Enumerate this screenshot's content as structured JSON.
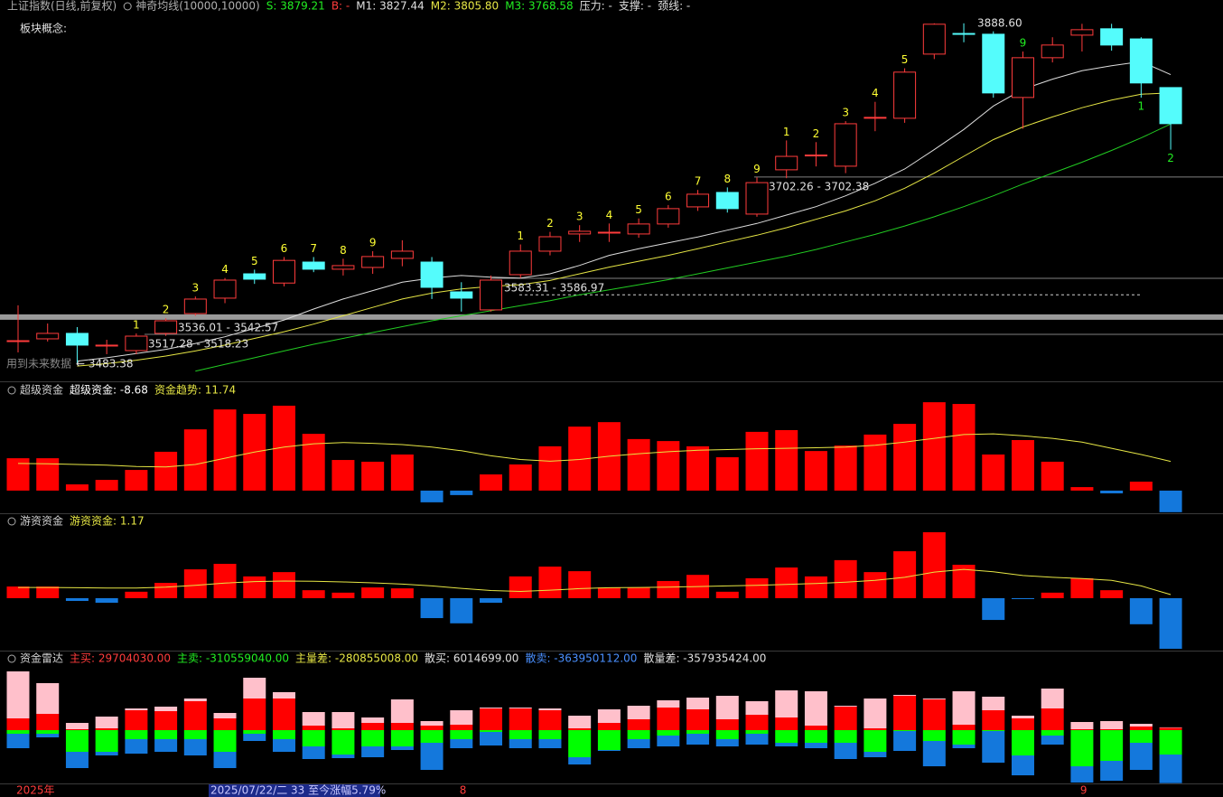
{
  "chart_data": [
    {
      "type": "candlestick",
      "title": "上证指数(日线,前复权)",
      "indicator": "神奇均线(10000,10000)",
      "subtitle": "板块概念:",
      "readouts": [
        {
          "text": "S: 3879.21",
          "color": "#22ee22"
        },
        {
          "text": "B: -",
          "color": "#ff3c3c"
        },
        {
          "text": "M1: 3827.44",
          "color": "#e0e0e0"
        },
        {
          "text": "M2: 3805.80",
          "color": "#e6e645"
        },
        {
          "text": "M3: 3768.58",
          "color": "#22ee22"
        },
        {
          "text": "压力: -",
          "color": "#e0e0e0"
        },
        {
          "text": "支撑: -",
          "color": "#e0e0e0"
        },
        {
          "text": "颈线: -",
          "color": "#e0e0e0"
        }
      ],
      "ylim": [
        3464,
        3897
      ],
      "up_color": "#ff3c3c",
      "down_color": "#54fcfc",
      "open": [
        3510.3,
        3512.5,
        3519,
        3503.9,
        3498.5,
        3519,
        3542.6,
        3561,
        3590,
        3579,
        3604,
        3595.5,
        3597.6,
        3608.4,
        3604,
        3568.5,
        3547,
        3589,
        3617,
        3637.5,
        3638.6,
        3637.5,
        3649.4,
        3669.8,
        3687,
        3661.2,
        3714,
        3730.6,
        3718.3,
        3775.5,
        3775.4,
        3851.9,
        3876.5,
        3875.6,
        3800.2,
        3847.6,
        3874.5,
        3882.1,
        3870,
        3812
      ],
      "high": [
        3552.4,
        3530.8,
        3526.5,
        3511.4,
        3519,
        3537,
        3563,
        3585,
        3595,
        3610,
        3610,
        3608,
        3617,
        3630,
        3610,
        3580,
        3588,
        3625,
        3640,
        3648,
        3650,
        3656,
        3672,
        3690,
        3693,
        3705,
        3749,
        3747,
        3772,
        3795,
        3835,
        3888.6,
        3888.6,
        3879,
        3855,
        3872,
        3888,
        3888,
        3872,
        3812
      ],
      "low": [
        3496.3,
        3509.3,
        3483.38,
        3494.2,
        3494.2,
        3516,
        3540,
        3555,
        3578,
        3575,
        3592,
        3588,
        3590,
        3599,
        3560,
        3545,
        3545,
        3585,
        3612,
        3628,
        3628,
        3633,
        3645,
        3665,
        3663,
        3658,
        3704,
        3718,
        3710,
        3760,
        3770,
        3846,
        3866,
        3800,
        3763,
        3842,
        3855,
        3856,
        3800,
        3738
      ],
      "close": [
        3510.3,
        3519,
        3505,
        3505,
        3515.7,
        3534,
        3559.9,
        3582.5,
        3583.6,
        3606,
        3595.5,
        3599.8,
        3610.6,
        3617,
        3573.9,
        3561,
        3582.5,
        3617,
        3634.2,
        3640.7,
        3639.6,
        3649.4,
        3667.7,
        3684.9,
        3667.7,
        3698.7,
        3730,
        3731.6,
        3768.9,
        3776.5,
        3830.4,
        3887.5,
        3875.5,
        3805.6,
        3847.6,
        3862.7,
        3881,
        3862.7,
        3817.5,
        3769
      ],
      "series": [
        {
          "color": "#dddddd",
          "values": [
            null,
            null,
            3486,
            3490,
            3495,
            3500,
            3507,
            3515,
            3525,
            3535,
            3548,
            3560,
            3570,
            3580,
            3585,
            3588,
            3586,
            3585,
            3590,
            3600,
            3612,
            3620,
            3627,
            3634,
            3642,
            3650,
            3660,
            3670,
            3683,
            3698,
            3715,
            3738,
            3762,
            3790,
            3810,
            3822,
            3832,
            3838,
            3843,
            3827.44
          ]
        },
        {
          "color": "#e6e645",
          "values": [
            null,
            null,
            3480,
            3483,
            3487,
            3492,
            3498,
            3505,
            3513,
            3521,
            3530,
            3540,
            3550,
            3560,
            3567,
            3572,
            3575,
            3577,
            3582,
            3590,
            3598,
            3605,
            3612,
            3620,
            3628,
            3636,
            3645,
            3655,
            3665,
            3677,
            3692,
            3710,
            3730,
            3750,
            3765,
            3777,
            3788,
            3797,
            3804,
            3805.8
          ]
        },
        {
          "color": "#22cc22",
          "values": [
            null,
            null,
            null,
            null,
            null,
            null,
            3474,
            3482,
            3490,
            3498,
            3506,
            3513,
            3520,
            3527,
            3534,
            3540,
            3546,
            3552,
            3558,
            3565,
            3571,
            3577,
            3583,
            3590,
            3597,
            3604,
            3611,
            3619,
            3628,
            3637,
            3647,
            3658,
            3670,
            3683,
            3697,
            3710,
            3723,
            3737,
            3752,
            3768.58
          ]
        }
      ],
      "levels": [
        {
          "value": 3705.4,
          "style": "thin"
        },
        {
          "value": 3584.7,
          "style": "thin"
        },
        {
          "value": 3538.4,
          "style": "thick"
        },
        {
          "value": 3517.9,
          "style": "thin"
        },
        {
          "value": 3565,
          "style": "dashed"
        }
      ],
      "annotations": [
        "3888.60",
        "3702.26 - 3702.38",
        "3583.31 - 3586.97",
        "3536.01 - 3542.57",
        "3517.28 - 3518.23",
        "用到未来数据",
        "← 3483.38"
      ],
      "counts": [
        null,
        null,
        null,
        null,
        {
          "text": "1",
          "color": "#ffff33",
          "side": "above"
        },
        {
          "text": "2",
          "color": "#ffff33",
          "side": "above"
        },
        {
          "text": "3",
          "color": "#ffff33",
          "side": "above"
        },
        {
          "text": "4",
          "color": "#ffff33",
          "side": "above"
        },
        {
          "text": "5",
          "color": "#ffff33",
          "side": "above"
        },
        {
          "text": "6",
          "color": "#ffff33",
          "side": "above"
        },
        {
          "text": "7",
          "color": "#ffff33",
          "side": "above"
        },
        {
          "text": "8",
          "color": "#ffff33",
          "side": "above"
        },
        {
          "text": "9",
          "color": "#ffff33",
          "side": "above"
        },
        null,
        null,
        null,
        null,
        {
          "text": "1",
          "color": "#ffff33",
          "side": "above"
        },
        {
          "text": "2",
          "color": "#ffff33",
          "side": "above"
        },
        {
          "text": "3",
          "color": "#ffff33",
          "side": "above"
        },
        {
          "text": "4",
          "color": "#ffff33",
          "side": "above"
        },
        {
          "text": "5",
          "color": "#ffff33",
          "side": "above"
        },
        {
          "text": "6",
          "color": "#ffff33",
          "side": "above"
        },
        {
          "text": "7",
          "color": "#ffff33",
          "side": "above"
        },
        {
          "text": "8",
          "color": "#ffff33",
          "side": "above"
        },
        {
          "text": "9",
          "color": "#ffff33",
          "side": "above"
        },
        {
          "text": "1",
          "color": "#ffff33",
          "side": "above"
        },
        {
          "text": "2",
          "color": "#ffff33",
          "side": "above"
        },
        {
          "text": "3",
          "color": "#ffff33",
          "side": "above"
        },
        {
          "text": "4",
          "color": "#ffff33",
          "side": "above"
        },
        {
          "text": "5",
          "color": "#ffff33",
          "side": "above"
        },
        null,
        null,
        null,
        {
          "text": "9",
          "color": "#22ee22",
          "side": "above"
        },
        null,
        null,
        null,
        {
          "text": "1",
          "color": "#22ee22",
          "side": "below"
        },
        {
          "text": "2",
          "color": "#22ee22",
          "side": "below"
        }
      ]
    },
    {
      "type": "bar",
      "title": "超级资金",
      "readouts": [
        {
          "text": "超级资金: -8.68",
          "color": "#ffffff"
        },
        {
          "text": "资金趋势: 11.74",
          "color": "#e6e645"
        }
      ],
      "ylim": [
        -9.1,
        42.8
      ],
      "up_color": "#ff0000",
      "down_color": "#1478dc",
      "trend_color": "#e6e645",
      "values": [
        13.0,
        13.0,
        2.5,
        4.3,
        8.3,
        15.6,
        24.6,
        32.6,
        30.8,
        34.1,
        22.8,
        12.3,
        11.6,
        14.5,
        -4.7,
        -1.8,
        6.5,
        10.5,
        17.8,
        25.7,
        27.5,
        20.7,
        19.9,
        17.8,
        13.4,
        23.6,
        24.3,
        15.9,
        18.1,
        22.5,
        26.8,
        35.5,
        34.8,
        14.5,
        20.3,
        11.6,
        1.4,
        -1.1,
        3.6,
        -8.68
      ],
      "trend": [
        10.9,
        10.8,
        10.5,
        10.2,
        9.7,
        9.5,
        10.5,
        13,
        15.5,
        17.5,
        18.8,
        19.3,
        19,
        18.5,
        17.5,
        16,
        14,
        12.5,
        11.8,
        12.5,
        13.8,
        14.8,
        15.6,
        16.2,
        16.5,
        16.8,
        17,
        17.2,
        17.5,
        18.2,
        19.5,
        21,
        22.5,
        22.8,
        22,
        21,
        19.5,
        17,
        14.5,
        11.74
      ]
    },
    {
      "type": "bar",
      "title": "游资资金",
      "readouts": [
        {
          "text": "游资资金: 1.17",
          "color": "#e6e645"
        }
      ],
      "ylim": [
        -17.1,
        27.1
      ],
      "up_color": "#ff0000",
      "down_color": "#1478dc",
      "trend_color": "#e6e645",
      "values": [
        3.8,
        3.8,
        -0.9,
        -1.5,
        2.1,
        5.0,
        9.4,
        11.2,
        7.1,
        8.5,
        2.6,
        1.8,
        3.5,
        3.2,
        -6.5,
        -8.2,
        -1.5,
        7.1,
        10.3,
        8.8,
        3.5,
        3.5,
        5.6,
        7.6,
        2.1,
        6.5,
        10,
        7.1,
        12.4,
        8.5,
        15.3,
        21.5,
        10.9,
        -7.1,
        -0.3,
        1.8,
        6.5,
        2.6,
        -8.5,
        -16.5
      ],
      "trend": [
        3.5,
        3.5,
        3.4,
        3.3,
        3.3,
        3.6,
        4.2,
        4.9,
        5.4,
        5.6,
        5.5,
        5.3,
        5,
        4.6,
        4,
        3.2,
        2.5,
        2.2,
        2.6,
        3.1,
        3.4,
        3.5,
        3.6,
        3.8,
        4,
        4.2,
        4.5,
        4.8,
        5.2,
        5.8,
        6.8,
        8.5,
        9.4,
        8.6,
        7.4,
        6.8,
        6.4,
        5.8,
        4,
        1.17
      ]
    },
    {
      "type": "stacked_bar",
      "title": "资金雷达",
      "readouts": [
        {
          "text": "主买: 29704030.00",
          "color": "#ff3c3c"
        },
        {
          "text": "主卖: -310559040.00",
          "color": "#22ee22"
        },
        {
          "text": "主量差: -280855008.00",
          "color": "#e6e645"
        },
        {
          "text": "散买: 6014699.00",
          "color": "#e0e0e0"
        },
        {
          "text": "散卖: -363950112.00",
          "color": "#4a90ff"
        },
        {
          "text": "散量差: -357935424.00",
          "color": "#e0e0e0"
        }
      ],
      "ylim": [
        -690000000.0,
        805000000.0
      ],
      "series": [
        {
          "color": "#ff0000",
          "values": [
            149500000.0,
            207000000.0,
            11500000.0,
            23000000.0,
            253000000.0,
            241500000.0,
            368000000.0,
            149500000.0,
            402500000.0,
            402500000.0,
            57500000.0,
            23000000.0,
            92000000.0,
            92000000.0,
            57500000.0,
            69000000.0,
            276000000.0,
            276000000.0,
            253000000.0,
            23000000.0,
            92000000.0,
            138000000.0,
            287500000.0,
            264500000.0,
            138000000.0,
            195500000.0,
            161000000.0,
            57500000.0,
            299000000.0,
            23000000.0,
            437000000.0,
            391000000.0,
            69000000.0,
            253000000.0,
            149500000.0,
            276000000.0,
            11500000.0,
            11500000.0,
            46000000.0,
            29704030
          ]
        },
        {
          "color": "#ffc0cb",
          "values": [
            598000000.0,
            391000000.0,
            80500000.0,
            149500000.0,
            23000000.0,
            57500000.0,
            34500000.0,
            69000000.0,
            264500000.0,
            80500000.0,
            172500000.0,
            207000000.0,
            69000000.0,
            299000000.0,
            57500000.0,
            184000000.0,
            11500000.0,
            11500000.0,
            23000000.0,
            161000000.0,
            172500000.0,
            172500000.0,
            92000000.0,
            149500000.0,
            299000000.0,
            172500000.0,
            345000000.0,
            437000000.0,
            11500000.0,
            379500000.0,
            11500000.0,
            11500000.0,
            425500000.0,
            172500000.0,
            34500000.0,
            253000000.0,
            92000000.0,
            103500000.0,
            34500000.0,
            6014699
          ]
        },
        {
          "color": "#00ff00",
          "values": [
            -46000000.0,
            -46000000.0,
            -276000000.0,
            -276000000.0,
            -115000000.0,
            -115000000.0,
            -115000000.0,
            -276000000.0,
            -46000000.0,
            -115000000.0,
            -207000000.0,
            -310500000.0,
            -207000000.0,
            -207000000.0,
            -161000000.0,
            -115000000.0,
            -23000000.0,
            -115000000.0,
            -115000000.0,
            -345000000.0,
            -253000000.0,
            -115000000.0,
            -69000000.0,
            -46000000.0,
            -115000000.0,
            -46000000.0,
            -161000000.0,
            -161000000.0,
            -161000000.0,
            -276000000.0,
            -11500000.0,
            -138000000.0,
            -184000000.0,
            -11500000.0,
            -322000000.0,
            -69000000.0,
            -460000000.0,
            -391000000.0,
            -161000000.0,
            -310559040
          ]
        },
        {
          "color": "#1478dc",
          "values": [
            -184000000.0,
            -46000000.0,
            -207000000.0,
            -46000000.0,
            -184000000.0,
            -161000000.0,
            -207000000.0,
            -207000000.0,
            -92000000.0,
            -161000000.0,
            -161000000.0,
            -46000000.0,
            -138000000.0,
            -46000000.0,
            -345000000.0,
            -115000000.0,
            -172500000.0,
            -115000000.0,
            -115000000.0,
            -92000000.0,
            -11500000.0,
            -115000000.0,
            -138000000.0,
            -138000000.0,
            -92000000.0,
            -138000000.0,
            -46000000.0,
            -69000000.0,
            -207000000.0,
            -69000000.0,
            -253000000.0,
            -322000000.0,
            -46000000.0,
            -402500000.0,
            -253000000.0,
            -115000000.0,
            -207000000.0,
            -253000000.0,
            -345000000.0,
            -363950112
          ]
        }
      ],
      "categories": [
        "2025年",
        null,
        null,
        null,
        null,
        null,
        null,
        null,
        null,
        null,
        null,
        null,
        null,
        null,
        null,
        "8",
        null,
        null,
        null,
        null,
        null,
        null,
        null,
        null,
        null,
        null,
        null,
        null,
        null,
        null,
        null,
        null,
        null,
        null,
        null,
        null,
        "9",
        null,
        null,
        null
      ],
      "category_color": "#ff3c3c",
      "cursor_label": "2025/07/22/二 33 至今涨幅5.79%"
    }
  ]
}
